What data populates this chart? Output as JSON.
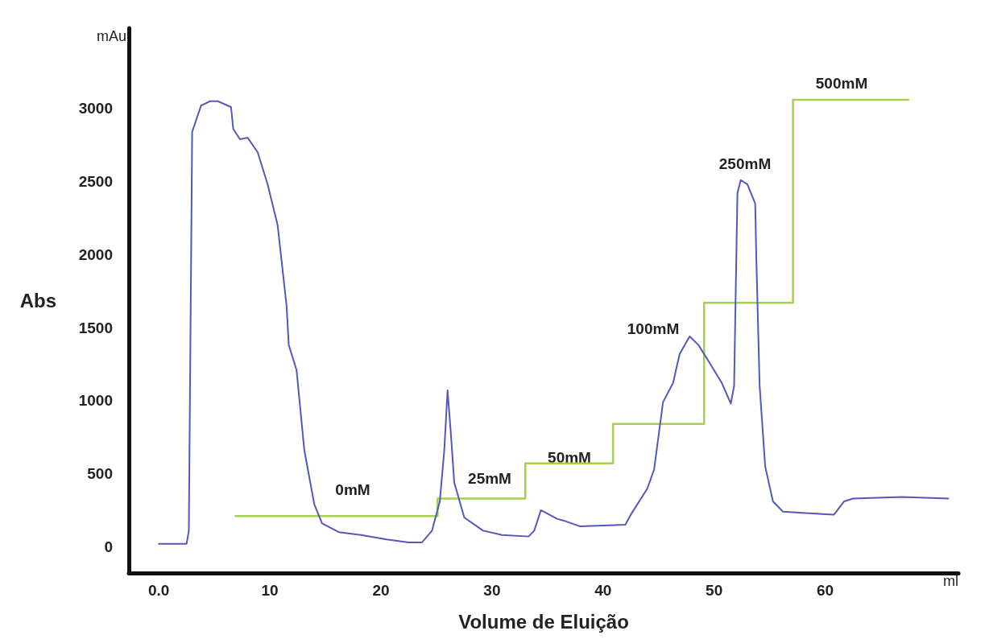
{
  "chart_data": {
    "type": "line",
    "xlabel": "Volume de Eluição",
    "ylabel": "Abs",
    "xlim": [
      -2.7,
      72
    ],
    "ylim": [
      -180,
      3550
    ],
    "xticks": [
      {
        "value": 0,
        "label": "0.0"
      },
      10,
      20,
      30,
      40,
      50,
      60
    ],
    "yticks": [
      0,
      500,
      1000,
      1500,
      2000,
      2500,
      3000
    ],
    "grid": false,
    "marker": "none",
    "line_style": "solid",
    "series": [
      {
        "color": "#5459b8",
        "x": [
          0,
          2.5,
          2.7,
          3.0,
          3.8,
          4.6,
          5.3,
          6.5,
          6.7,
          7.3,
          8.0,
          8.9,
          9.8,
          10.7,
          11.5,
          11.7,
          12.4,
          13.1,
          14.0,
          14.7,
          16.2,
          18.2,
          20.5,
          22.5,
          23.7,
          24.6,
          25.3,
          25.7,
          26.0,
          26.3,
          26.6,
          27.5,
          29.2,
          30.9,
          33.3,
          33.8,
          34.4,
          35.9,
          36.4,
          37.9,
          42.0,
          42.5,
          44.0,
          44.6,
          45.4,
          46.3,
          46.9,
          47.8,
          48.6,
          49.5,
          50.7,
          51.5,
          51.8,
          52.1,
          52.4,
          53.0,
          53.7,
          53.8,
          54.1,
          54.6,
          55.3,
          56.2,
          58.2,
          60.8,
          61.7,
          62.5,
          66.9,
          71.1
        ],
        "values": [
          20,
          20,
          110,
          2840,
          3020,
          3050,
          3050,
          3010,
          2860,
          2790,
          2800,
          2700,
          2480,
          2200,
          1650,
          1380,
          1210,
          660,
          290,
          160,
          100,
          80,
          50,
          30,
          30,
          110,
          310,
          660,
          1070,
          770,
          440,
          200,
          110,
          80,
          70,
          110,
          250,
          190,
          180,
          140,
          150,
          220,
          400,
          530,
          990,
          1120,
          1320,
          1440,
          1380,
          1270,
          1120,
          980,
          1100,
          2420,
          2510,
          2480,
          2350,
          1980,
          1100,
          550,
          310,
          240,
          230,
          220,
          310,
          330,
          340,
          330
        ]
      },
      {
        "type": "step",
        "color": "#a3d14f",
        "x": [
          6.9,
          25.1,
          33.0,
          40.9,
          49.1,
          57.1,
          67.5
        ],
        "values": [
          210,
          330,
          570,
          840,
          1670,
          3060,
          3060
        ]
      }
    ],
    "annotations": [
      "0mM",
      "25mM",
      "50mM",
      "100mM",
      "250mM",
      "500mM",
      "mAu",
      "ml"
    ]
  }
}
